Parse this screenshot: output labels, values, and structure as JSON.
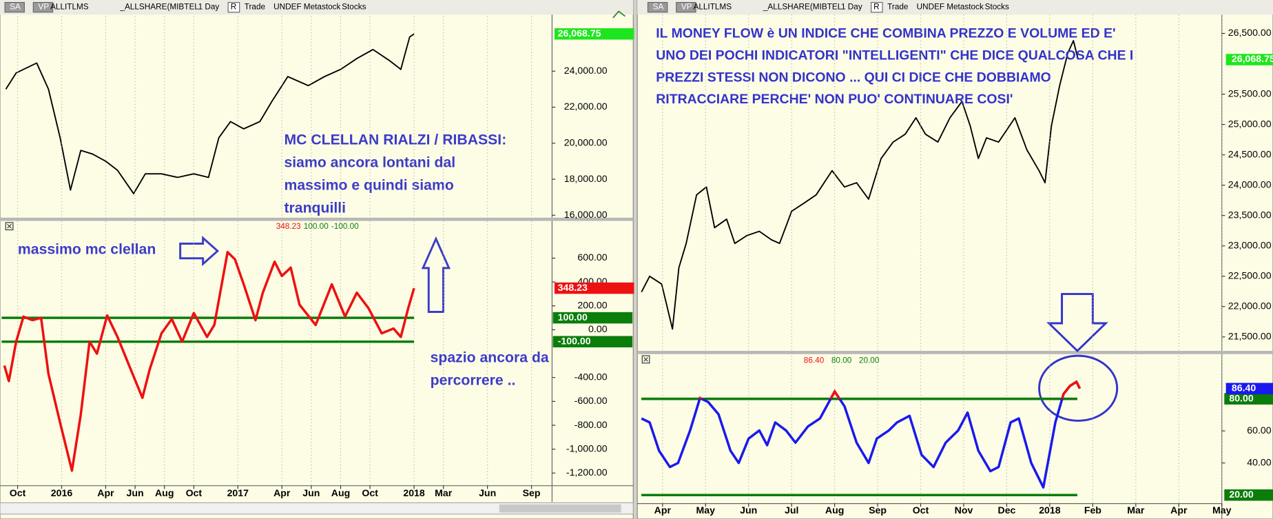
{
  "toolbars": [
    [
      "SA",
      "VP",
      "ALLITLMS",
      "_ALLSHARE(MIBTEL",
      "1 Day",
      "R",
      "Trade",
      "UNDEF",
      "Metastock",
      "Stocks"
    ],
    [
      "SA",
      "VP",
      "ALLITLMS",
      "_ALLSHARE(MIBTEL",
      "1 Day",
      "R",
      "Trade",
      "UNDEF",
      "Metastock",
      "Stocks"
    ]
  ],
  "chart_data": [
    {
      "type": "line",
      "color": "#000000",
      "label_color": "#1ee61e",
      "xlim": [
        -1.2,
        36.4
      ],
      "ylim": [
        15865,
        27050
      ],
      "yticks": [
        {
          "value": 16000,
          "label": "16,000.00"
        },
        {
          "value": 18000,
          "label": "18,000.00"
        },
        {
          "value": 20000,
          "label": "20,000.00"
        },
        {
          "value": 22000,
          "label": "22,000.00"
        },
        {
          "value": 24000,
          "label": "24,000.00"
        }
      ],
      "x": [
        -0.8,
        -0.1,
        1.3,
        2.1,
        2.9,
        3.6,
        4.3,
        5.1,
        6.0,
        6.8,
        7.9,
        8.7,
        9.8,
        10.9,
        12.0,
        13.0,
        13.7,
        14.5,
        15.4,
        16.5,
        17.3,
        18.4,
        19.8,
        20.9,
        22.0,
        23.1,
        24.2,
        25.3,
        26.1,
        26.7,
        27.0
      ],
      "values": [
        23000,
        23900,
        24450,
        23000,
        20300,
        17400,
        19600,
        19400,
        19000,
        18500,
        17200,
        18300,
        18300,
        18100,
        18300,
        18100,
        20300,
        21200,
        20800,
        21200,
        22300,
        23700,
        23200,
        23700,
        24100,
        24700,
        25200,
        24600,
        24100,
        25900,
        26068.75
      ],
      "value_labels": [
        null,
        null,
        null,
        null,
        null,
        null,
        null,
        null,
        null,
        null,
        null,
        null,
        null,
        null,
        null,
        null,
        null,
        null,
        null,
        null,
        null,
        null,
        null,
        null,
        null,
        null,
        null,
        null,
        null,
        null,
        "26,068.75"
      ],
      "annotations": [
        {
          "lines": [
            "MC CLELLAN RIALZI / RIBASSI:",
            "siamo ancora lontani dal",
            "massimo e quindi siamo",
            "tranquilli"
          ]
        }
      ]
    },
    {
      "type": "line",
      "color": "#ee1111",
      "xlim": [
        -1.2,
        36.4
      ],
      "ylim": [
        -1306,
        823
      ],
      "yticks": [
        {
          "value": 600,
          "label": "600.00"
        },
        {
          "value": 400,
          "label": "400.00"
        },
        {
          "value": 200,
          "label": "200.00"
        },
        {
          "value": 0,
          "label": "0.00"
        },
        {
          "value": -400,
          "label": "-400.00"
        },
        {
          "value": -600,
          "label": "-600.00"
        },
        {
          "value": -800,
          "label": "-800.00"
        },
        {
          "value": -1000,
          "label": "-1,000.00"
        },
        {
          "value": -1200,
          "label": "-1,200.00"
        }
      ],
      "xticks": [
        {
          "value": 0,
          "label": "Oct"
        },
        {
          "value": 3,
          "label": "2016"
        },
        {
          "value": 6,
          "label": "Apr"
        },
        {
          "value": 8,
          "label": "Jun"
        },
        {
          "value": 10,
          "label": "Aug"
        },
        {
          "value": 12,
          "label": "Oct"
        },
        {
          "value": 15,
          "label": "2017"
        },
        {
          "value": 18,
          "label": "Apr"
        },
        {
          "value": 20,
          "label": "Jun"
        },
        {
          "value": 22,
          "label": "Aug"
        },
        {
          "value": 24,
          "label": "Oct"
        },
        {
          "value": 27,
          "label": "2018"
        },
        {
          "value": 29,
          "label": "Mar"
        },
        {
          "value": 32,
          "label": "Jun"
        },
        {
          "value": 35,
          "label": "Sep"
        }
      ],
      "x": [
        -0.9,
        -0.6,
        -0.1,
        0.4,
        1.0,
        1.6,
        2.1,
        2.9,
        3.7,
        4.3,
        4.9,
        5.4,
        6.1,
        6.8,
        7.6,
        8.5,
        9.0,
        9.8,
        10.5,
        11.2,
        12.0,
        12.9,
        13.4,
        14.3,
        14.8,
        15.4,
        16.2,
        16.7,
        17.5,
        18.0,
        18.6,
        19.2,
        20.3,
        21.4,
        22.3,
        23.1,
        23.9,
        24.8,
        25.6,
        26.1,
        26.6,
        27.0
      ],
      "values": [
        -300,
        -430,
        -100,
        110,
        80,
        100,
        -370,
        -780,
        -1180,
        -710,
        -100,
        -200,
        120,
        -60,
        -300,
        -570,
        -330,
        -30,
        90,
        -100,
        140,
        -60,
        40,
        650,
        590,
        380,
        80,
        310,
        570,
        450,
        520,
        210,
        40,
        380,
        110,
        310,
        180,
        -30,
        10,
        -60,
        180,
        348.23
      ],
      "value_labels": [
        null,
        null,
        null,
        null,
        null,
        null,
        null,
        null,
        null,
        null,
        null,
        null,
        null,
        null,
        null,
        null,
        null,
        null,
        null,
        null,
        null,
        null,
        null,
        null,
        null,
        null,
        null,
        null,
        null,
        null,
        null,
        null,
        null,
        null,
        null,
        null,
        null,
        null,
        null,
        null,
        null,
        "348.23"
      ],
      "header": [
        "348.23",
        "100.00",
        "-100.00"
      ],
      "reference_lines": [
        {
          "value": 100,
          "label": "100.00",
          "color": "#0b7d0b"
        },
        {
          "value": -100,
          "label": "-100.00",
          "color": "#0b7d0b"
        }
      ],
      "annotations": [
        {
          "lines": [
            "massimo mc clellan"
          ]
        },
        {
          "lines": [
            "spazio ancora da",
            "percorrere .."
          ]
        }
      ]
    },
    {
      "type": "line",
      "color": "#000000",
      "label_color": "#1ee61e",
      "xlim": [
        -0.53,
        13.0
      ],
      "ylim": [
        21270,
        26810
      ],
      "yticks": [
        {
          "value": 21500,
          "label": "21,500.00"
        },
        {
          "value": 22000,
          "label": "22,000.00"
        },
        {
          "value": 22500,
          "label": "22,500.00"
        },
        {
          "value": 23000,
          "label": "23,000.00"
        },
        {
          "value": 23500,
          "label": "23,500.00"
        },
        {
          "value": 24000,
          "label": "24,000.00"
        },
        {
          "value": 24500,
          "label": "24,500.00"
        },
        {
          "value": 25000,
          "label": "25,000.00"
        },
        {
          "value": 25500,
          "label": "25,500.00"
        },
        {
          "value": 26500,
          "label": "26,500.00"
        }
      ],
      "x": [
        -0.49,
        -0.3,
        -0.02,
        0.23,
        0.38,
        0.55,
        0.79,
        1.02,
        1.21,
        1.49,
        1.68,
        1.96,
        2.25,
        2.53,
        2.72,
        3.0,
        3.28,
        3.57,
        3.94,
        4.23,
        4.51,
        4.79,
        5.08,
        5.36,
        5.64,
        5.89,
        6.11,
        6.4,
        6.68,
        6.96,
        7.15,
        7.34,
        7.53,
        7.81,
        8.19,
        8.47,
        8.75,
        8.89,
        9.04,
        9.23,
        9.42,
        9.55,
        9.66
      ],
      "values": [
        22240,
        22500,
        22370,
        21630,
        22640,
        23040,
        23840,
        23970,
        23300,
        23440,
        23040,
        23170,
        23240,
        23100,
        23040,
        23570,
        23700,
        23840,
        24240,
        23970,
        24040,
        23770,
        24440,
        24710,
        24840,
        25110,
        24840,
        24710,
        25110,
        25380,
        24980,
        24440,
        24780,
        24710,
        25110,
        24580,
        24240,
        24040,
        24980,
        25640,
        26180,
        26380,
        26068.75
      ],
      "value_labels": [
        null,
        null,
        null,
        null,
        null,
        null,
        null,
        null,
        null,
        null,
        null,
        null,
        null,
        null,
        null,
        null,
        null,
        null,
        null,
        null,
        null,
        null,
        null,
        null,
        null,
        null,
        null,
        null,
        null,
        null,
        null,
        null,
        null,
        null,
        null,
        null,
        null,
        null,
        null,
        null,
        null,
        null,
        "26,068.75"
      ],
      "annotations": [
        {
          "lines": [
            "IL MONEY FLOW è UN INDICE CHE COMBINA PREZZO E VOLUME ED E'",
            "UNO DEI POCHI INDICATORI \"INTELLIGENTI\" CHE DICE QUALCOSA CHE I",
            "PREZZI STESSI NON DICONO ... QUI CI DICE CHE DOBBIAMO",
            "RITRACCIARE PERCHE' NON PUO' CONTINUARE COSI'"
          ]
        }
      ]
    },
    {
      "type": "line",
      "color": "#1a1aee",
      "over_color": "#ee1111",
      "xlim": [
        -0.53,
        13.0
      ],
      "ylim": [
        14.7,
        100.8
      ],
      "yticks": [
        {
          "value": 40,
          "label": "40.00"
        },
        {
          "value": 60,
          "label": "60.00"
        }
      ],
      "xticks": [
        {
          "value": 0,
          "label": "Apr"
        },
        {
          "value": 1,
          "label": "May"
        },
        {
          "value": 2,
          "label": "Jun"
        },
        {
          "value": 3,
          "label": "Jul"
        },
        {
          "value": 4,
          "label": "Aug"
        },
        {
          "value": 5,
          "label": "Sep"
        },
        {
          "value": 6,
          "label": "Oct"
        },
        {
          "value": 7,
          "label": "Nov"
        },
        {
          "value": 8,
          "label": "Dec"
        },
        {
          "value": 9,
          "label": "2018"
        },
        {
          "value": 10,
          "label": "Feb"
        },
        {
          "value": 11,
          "label": "Mar"
        },
        {
          "value": 12,
          "label": "Apr"
        },
        {
          "value": 13,
          "label": "May"
        }
      ],
      "x": [
        -0.49,
        -0.3,
        -0.08,
        0.17,
        0.36,
        0.64,
        0.87,
        1.06,
        1.3,
        1.58,
        1.77,
        2.0,
        2.25,
        2.43,
        2.62,
        2.87,
        3.09,
        3.38,
        3.66,
        4.0,
        4.23,
        4.51,
        4.79,
        4.98,
        5.26,
        5.45,
        5.74,
        6.02,
        6.3,
        6.58,
        6.87,
        7.09,
        7.34,
        7.62,
        7.81,
        8.09,
        8.28,
        8.57,
        8.85,
        9.13,
        9.32,
        9.47,
        9.62,
        9.7
      ],
      "values": [
        67.8,
        65.3,
        47.6,
        37.5,
        40,
        60.3,
        80.5,
        78,
        70.4,
        47.6,
        40,
        55.2,
        60.3,
        51.1,
        65.3,
        60.3,
        52.7,
        62.8,
        67.8,
        84.6,
        75.4,
        52.7,
        40,
        55.2,
        60.3,
        65.3,
        69.4,
        45.1,
        37.5,
        52.7,
        60.3,
        71.4,
        47.6,
        34.9,
        37.5,
        65.3,
        67.8,
        40,
        24.8,
        65.3,
        83,
        88.1,
        90.6,
        86.4
      ],
      "value_labels": [
        null,
        null,
        null,
        null,
        null,
        null,
        null,
        null,
        null,
        null,
        null,
        null,
        null,
        null,
        null,
        null,
        null,
        null,
        null,
        null,
        null,
        null,
        null,
        null,
        null,
        null,
        null,
        null,
        null,
        null,
        null,
        null,
        null,
        null,
        null,
        null,
        null,
        null,
        null,
        null,
        null,
        null,
        null,
        "86.40"
      ],
      "header": [
        "86.40",
        "80.00",
        "20.00"
      ],
      "reference_lines": [
        {
          "value": 80,
          "label": "80.00",
          "color": "#0b7d0b"
        },
        {
          "value": 20,
          "label": "20.00",
          "color": "#0b7d0b"
        }
      ]
    }
  ]
}
